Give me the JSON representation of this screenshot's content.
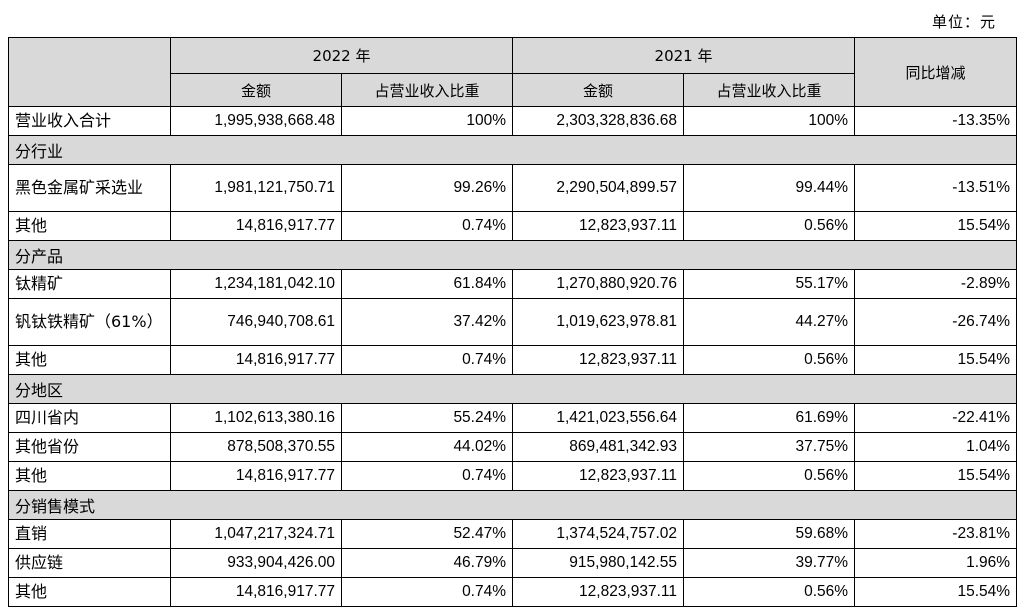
{
  "unit_note": "单位：元",
  "header": {
    "year1": "2022 年",
    "year2": "2021 年",
    "amount": "金额",
    "ratio": "占营业收入比重",
    "yoy": "同比增减"
  },
  "chart_data": {
    "type": "table",
    "columns": [
      "",
      "2022 年 金额",
      "2022 年 占营业收入比重",
      "2021 年 金额",
      "2021 年 占营业收入比重",
      "同比增减"
    ],
    "rows": [
      {
        "kind": "data",
        "label": "营业收入合计",
        "a22": "1,995,938,668.48",
        "r22": "100%",
        "a21": "2,303,328,836.68",
        "r21": "100%",
        "yoy": "-13.35%"
      },
      {
        "kind": "section",
        "label": "分行业"
      },
      {
        "kind": "data",
        "tall": true,
        "label": "黑色金属矿采选业",
        "a22": "1,981,121,750.71",
        "r22": "99.26%",
        "a21": "2,290,504,899.57",
        "r21": "99.44%",
        "yoy": "-13.51%"
      },
      {
        "kind": "data",
        "label": "其他",
        "a22": "14,816,917.77",
        "r22": "0.74%",
        "a21": "12,823,937.11",
        "r21": "0.56%",
        "yoy": "15.54%"
      },
      {
        "kind": "section",
        "label": "分产品"
      },
      {
        "kind": "data",
        "label": "钛精矿",
        "a22": "1,234,181,042.10",
        "r22": "61.84%",
        "a21": "1,270,880,920.76",
        "r21": "55.17%",
        "yoy": "-2.89%"
      },
      {
        "kind": "data",
        "tall": true,
        "label": "钒钛铁精矿（61%）",
        "a22": "746,940,708.61",
        "r22": "37.42%",
        "a21": "1,019,623,978.81",
        "r21": "44.27%",
        "yoy": "-26.74%"
      },
      {
        "kind": "data",
        "label": "其他",
        "a22": "14,816,917.77",
        "r22": "0.74%",
        "a21": "12,823,937.11",
        "r21": "0.56%",
        "yoy": "15.54%"
      },
      {
        "kind": "section",
        "label": "分地区"
      },
      {
        "kind": "data",
        "label": "四川省内",
        "a22": "1,102,613,380.16",
        "r22": "55.24%",
        "a21": "1,421,023,556.64",
        "r21": "61.69%",
        "yoy": "-22.41%"
      },
      {
        "kind": "data",
        "label": "其他省份",
        "a22": "878,508,370.55",
        "r22": "44.02%",
        "a21": "869,481,342.93",
        "r21": "37.75%",
        "yoy": "1.04%"
      },
      {
        "kind": "data",
        "label": "其他",
        "a22": "14,816,917.77",
        "r22": "0.74%",
        "a21": "12,823,937.11",
        "r21": "0.56%",
        "yoy": "15.54%"
      },
      {
        "kind": "section",
        "label": "分销售模式"
      },
      {
        "kind": "data",
        "label": "直销",
        "a22": "1,047,217,324.71",
        "r22": "52.47%",
        "a21": "1,374,524,757.02",
        "r21": "59.68%",
        "yoy": "-23.81%"
      },
      {
        "kind": "data",
        "label": "供应链",
        "a22": "933,904,426.00",
        "r22": "46.79%",
        "a21": "915,980,142.55",
        "r21": "39.77%",
        "yoy": "1.96%"
      },
      {
        "kind": "data",
        "label": "其他",
        "a22": "14,816,917.77",
        "r22": "0.74%",
        "a21": "12,823,937.11",
        "r21": "0.56%",
        "yoy": "15.54%"
      }
    ]
  }
}
